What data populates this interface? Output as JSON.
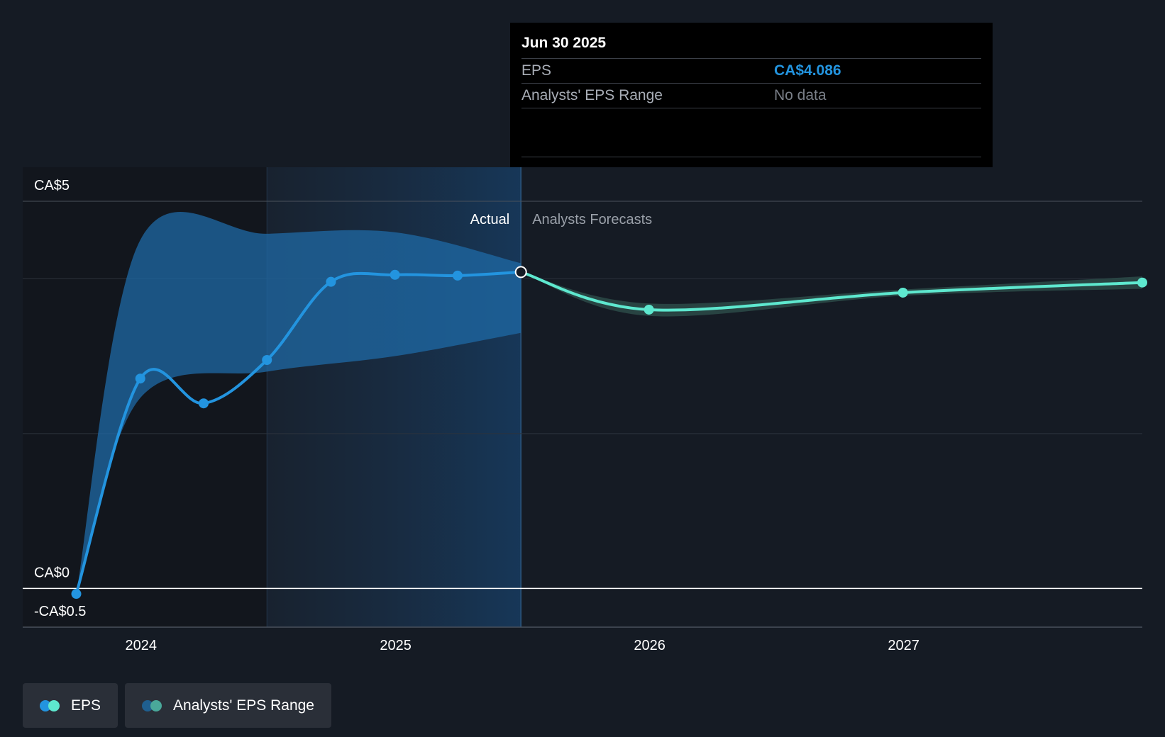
{
  "tooltip": {
    "date": "Jun 30 2025",
    "rows": [
      {
        "label": "EPS",
        "value": "CA$4.086"
      },
      {
        "label": "Analysts' EPS Range",
        "value": "No data"
      }
    ]
  },
  "labels": {
    "actual": "Actual",
    "forecast": "Analysts Forecasts"
  },
  "legend": [
    {
      "label": "EPS",
      "colors": [
        "#2394df",
        "#5ee8cf"
      ]
    },
    {
      "label": "Analysts' EPS Range",
      "colors": [
        "#1f5f8f",
        "#4aa89a"
      ]
    }
  ],
  "colors": {
    "eps_actual": "#2394df",
    "eps_forecast": "#5ee8cf",
    "range_actual": "#1f6aa5",
    "range_forecast": "#2c4a48",
    "background": "#151b24"
  },
  "chart_data": {
    "type": "line",
    "ylabel": "",
    "y_tick_labels": [
      {
        "value": 5,
        "label": "CA$5"
      },
      {
        "value": 0,
        "label": "CA$0"
      },
      {
        "value": -0.5,
        "label": "-CA$0.5"
      }
    ],
    "ylim": [
      -0.5,
      5
    ],
    "xlim": [
      "2023-07-15",
      "2027-12-10"
    ],
    "x_ticks": [
      {
        "date": "2024-01-01",
        "label": "2024"
      },
      {
        "date": "2025-01-01",
        "label": "2025"
      },
      {
        "date": "2026-01-01",
        "label": "2026"
      },
      {
        "date": "2027-01-01",
        "label": "2027"
      }
    ],
    "actual_cutoff": "2025-06-30",
    "series": [
      {
        "name": "EPS",
        "kind": "actual",
        "points": [
          {
            "x": "2023-09-30",
            "y": -0.07
          },
          {
            "x": "2023-12-31",
            "y": 2.71
          },
          {
            "x": "2024-03-31",
            "y": 2.39
          },
          {
            "x": "2024-06-30",
            "y": 2.95
          },
          {
            "x": "2024-09-30",
            "y": 3.96
          },
          {
            "x": "2024-12-31",
            "y": 4.05
          },
          {
            "x": "2025-03-31",
            "y": 4.04
          },
          {
            "x": "2025-06-30",
            "y": 4.086
          }
        ]
      },
      {
        "name": "EPS",
        "kind": "forecast",
        "points": [
          {
            "x": "2025-06-30",
            "y": 4.086
          },
          {
            "x": "2025-12-31",
            "y": 3.6
          },
          {
            "x": "2026-12-31",
            "y": 3.82
          },
          {
            "x": "2027-12-10",
            "y": 3.95
          }
        ]
      }
    ],
    "range_actual": {
      "x": [
        "2023-09-30",
        "2023-12-31",
        "2024-06-30",
        "2024-12-31",
        "2025-06-30"
      ],
      "low": [
        -0.07,
        2.46,
        2.8,
        3.0,
        3.3
      ],
      "high": [
        -0.07,
        4.5,
        4.58,
        4.6,
        4.2
      ]
    },
    "range_forecast": {
      "x": [
        "2025-06-30",
        "2025-12-31",
        "2026-12-31",
        "2027-12-10"
      ],
      "low": [
        4.086,
        3.52,
        3.78,
        3.87
      ],
      "high": [
        4.086,
        3.68,
        3.86,
        4.03
      ]
    }
  }
}
